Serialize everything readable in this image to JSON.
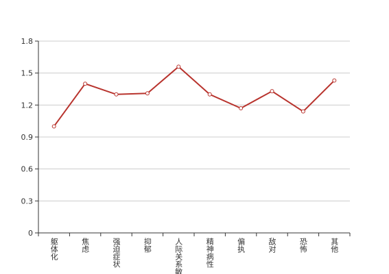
{
  "chart_data": {
    "type": "line",
    "categories": [
      "躯体化",
      "焦虑",
      "强迫症状",
      "抑郁",
      "人际关系敏感",
      "精神病性",
      "偏执",
      "敌对",
      "恐怖",
      "其他"
    ],
    "values": [
      1.0,
      1.4,
      1.3,
      1.31,
      1.56,
      1.3,
      1.17,
      1.33,
      1.14,
      1.43
    ],
    "color": "#b8332d",
    "ylim": [
      0,
      1.8
    ],
    "yticks": [
      0,
      0.3,
      0.6,
      0.9,
      1.2,
      1.5,
      1.8
    ],
    "grid": true
  }
}
